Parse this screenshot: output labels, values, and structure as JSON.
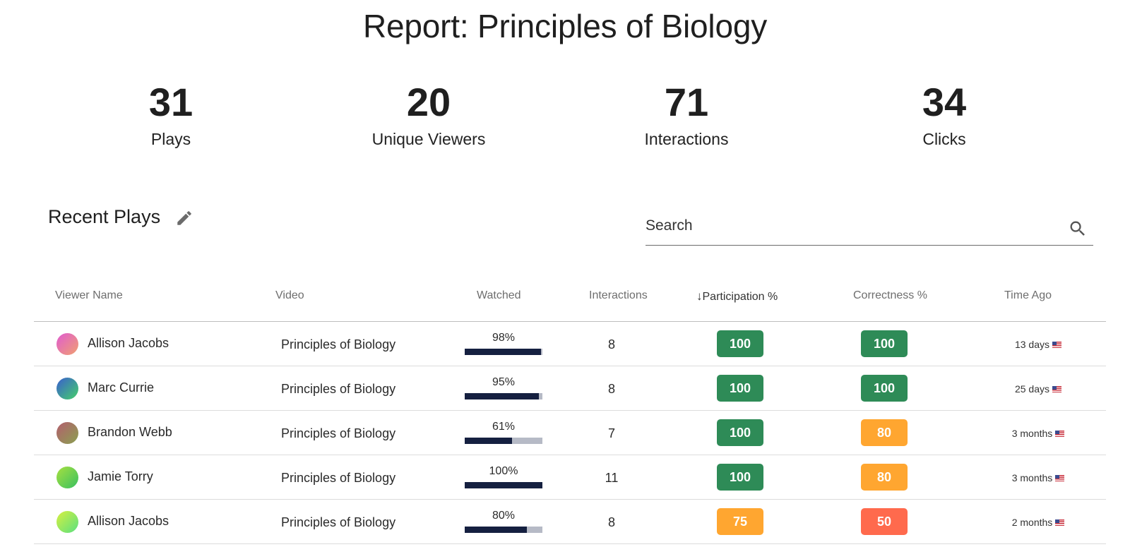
{
  "header": {
    "title": "Report: Principles of Biology"
  },
  "stats": [
    {
      "value": "31",
      "label": "Plays"
    },
    {
      "value": "20",
      "label": "Unique Viewers"
    },
    {
      "value": "71",
      "label": "Interactions"
    },
    {
      "value": "34",
      "label": "Clicks"
    }
  ],
  "recent": {
    "title": "Recent Plays",
    "search_placeholder": "Search"
  },
  "table": {
    "columns": {
      "viewer": "Viewer Name",
      "video": "Video",
      "watched": "Watched",
      "interactions": "Interactions",
      "sort_arrow": "↓",
      "participation": "Participation %",
      "correctness": "Correctness %",
      "time_ago": "Time Ago"
    },
    "rows": [
      {
        "viewer": "Allison Jacobs",
        "video": "Principles of Biology",
        "watched_label": "98%",
        "watched": 98,
        "interactions": "8",
        "participation": "100",
        "correctness": "100",
        "time_ago": "13 days",
        "avatar_colors": [
          "#e05bd0",
          "#f0a070"
        ]
      },
      {
        "viewer": "Marc Currie",
        "video": "Principles of Biology",
        "watched_label": "95%",
        "watched": 95,
        "interactions": "8",
        "participation": "100",
        "correctness": "100",
        "time_ago": "25 days",
        "avatar_colors": [
          "#3a5ecf",
          "#45d06a"
        ]
      },
      {
        "viewer": "Brandon Webb",
        "video": "Principles of Biology",
        "watched_label": "61%",
        "watched": 61,
        "interactions": "7",
        "participation": "100",
        "correctness": "80",
        "time_ago": "3 months",
        "avatar_colors": [
          "#b45e6e",
          "#8aa050"
        ]
      },
      {
        "viewer": "Jamie Torry",
        "video": "Principles of Biology",
        "watched_label": "100%",
        "watched": 100,
        "interactions": "11",
        "participation": "100",
        "correctness": "80",
        "time_ago": "3 months",
        "avatar_colors": [
          "#a8e040",
          "#38c060"
        ]
      },
      {
        "viewer": "Allison Jacobs",
        "video": "Principles of Biology",
        "watched_label": "80%",
        "watched": 80,
        "interactions": "8",
        "participation": "75",
        "correctness": "50",
        "time_ago": "2 months",
        "avatar_colors": [
          "#d8f040",
          "#58e080"
        ]
      }
    ]
  },
  "colors": {
    "good": "#2e8b57",
    "medium": "#ffa630",
    "poor": "#ff6a4d",
    "bar_fill": "#152040",
    "bar_track": "#b6bac6"
  },
  "icons": {
    "edit": "pencil-icon",
    "search": "search-icon",
    "flag": "us-flag-icon"
  }
}
